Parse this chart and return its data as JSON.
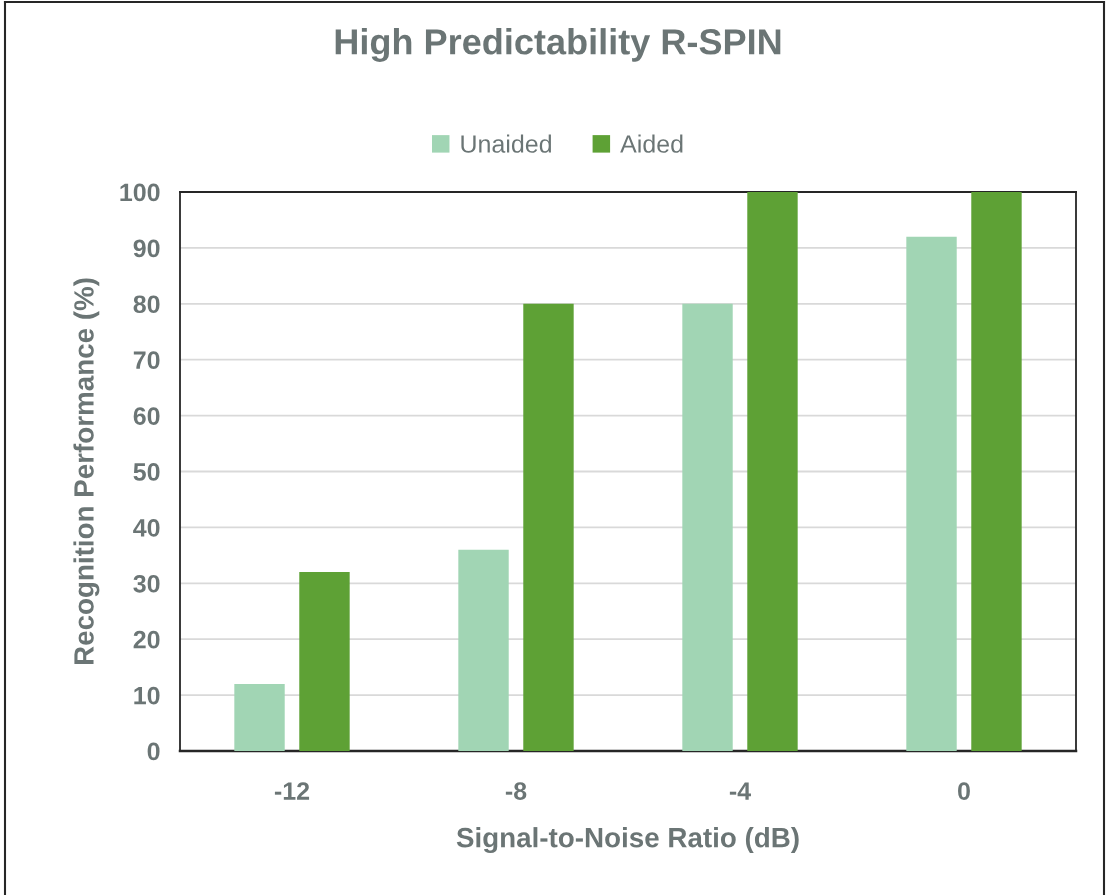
{
  "chart_data": {
    "type": "bar",
    "title": "High Predictability R-SPIN",
    "xlabel": "Signal-to-Noise Ratio (dB)",
    "ylabel": "Recognition Performance (%)",
    "categories": [
      "-12",
      "-8",
      "-4",
      "0"
    ],
    "series": [
      {
        "name": "Unaided",
        "color": "#a1d5b4",
        "values": [
          12,
          36,
          80,
          92
        ]
      },
      {
        "name": "Aided",
        "color": "#5ea135",
        "values": [
          32,
          80,
          100,
          100
        ]
      }
    ],
    "ylim": [
      0,
      100
    ],
    "yticks": [
      0,
      10,
      20,
      30,
      40,
      50,
      60,
      70,
      80,
      90,
      100
    ],
    "grid": "y",
    "legend": "top"
  }
}
